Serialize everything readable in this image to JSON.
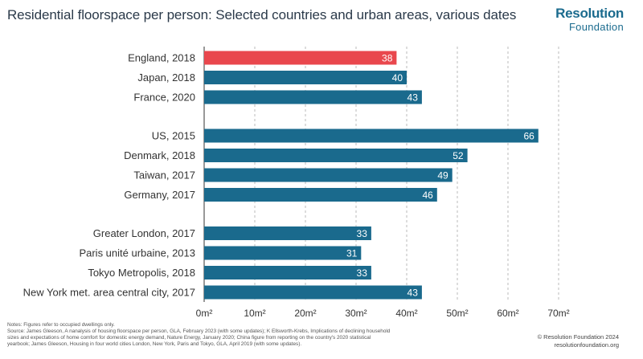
{
  "header": {
    "title": "Residential floorspace per person: Selected countries and urban areas, various dates",
    "brand_line1": "Resolution",
    "brand_line2": "Foundation"
  },
  "chart_data": {
    "type": "bar",
    "orientation": "horizontal",
    "title": "Residential floorspace per person: Selected countries and urban areas, various dates",
    "categories": [
      "England, 2018",
      "Japan, 2018",
      "France, 2020",
      "US, 2015",
      "Denmark, 2018",
      "Taiwan, 2017",
      "Germany, 2017",
      "Greater London, 2017",
      "Paris unité urbaine, 2013",
      "Tokyo Metropolis, 2018",
      "New York met. area central city, 2017"
    ],
    "values": [
      38,
      40,
      43,
      66,
      52,
      49,
      46,
      33,
      31,
      33,
      43
    ],
    "groups": [
      [
        0,
        1,
        2
      ],
      [
        3,
        4,
        5,
        6
      ],
      [
        7,
        8,
        9,
        10
      ]
    ],
    "highlight_index": 0,
    "x_ticks": [
      "0m²",
      "10m²",
      "20m²",
      "30m²",
      "40m²",
      "50m²",
      "60m²",
      "70m²"
    ],
    "xlim": [
      0,
      70
    ],
    "grid": "vertical dashed",
    "colors": {
      "bar": "#1a6a8d",
      "highlight": "#e9474d",
      "grid": "#bbbbbb",
      "label": "#ffffff"
    }
  },
  "notes": [
    "Notes: Figures refer to occupied dwellings only.",
    "Source: James Gleeson, A nanalysis of housing floorspace per person, GLA, February 2023 (with some updates); K Ellsworth-Krebs, Implications of declining household",
    "sizes and expectations of home comfort for domestic energy demand, Nature Energy, January 2020; China figure from reporting on the country's 2020 statistical",
    "yearbook; James Gleeson, Housing in four world cities London, New York, Paris and Tokyo, GLA, April 2019 (with some updates)."
  ],
  "footer": {
    "copyright": "© Resolution Foundation 2024",
    "url": "resolutionfoundation.org"
  }
}
